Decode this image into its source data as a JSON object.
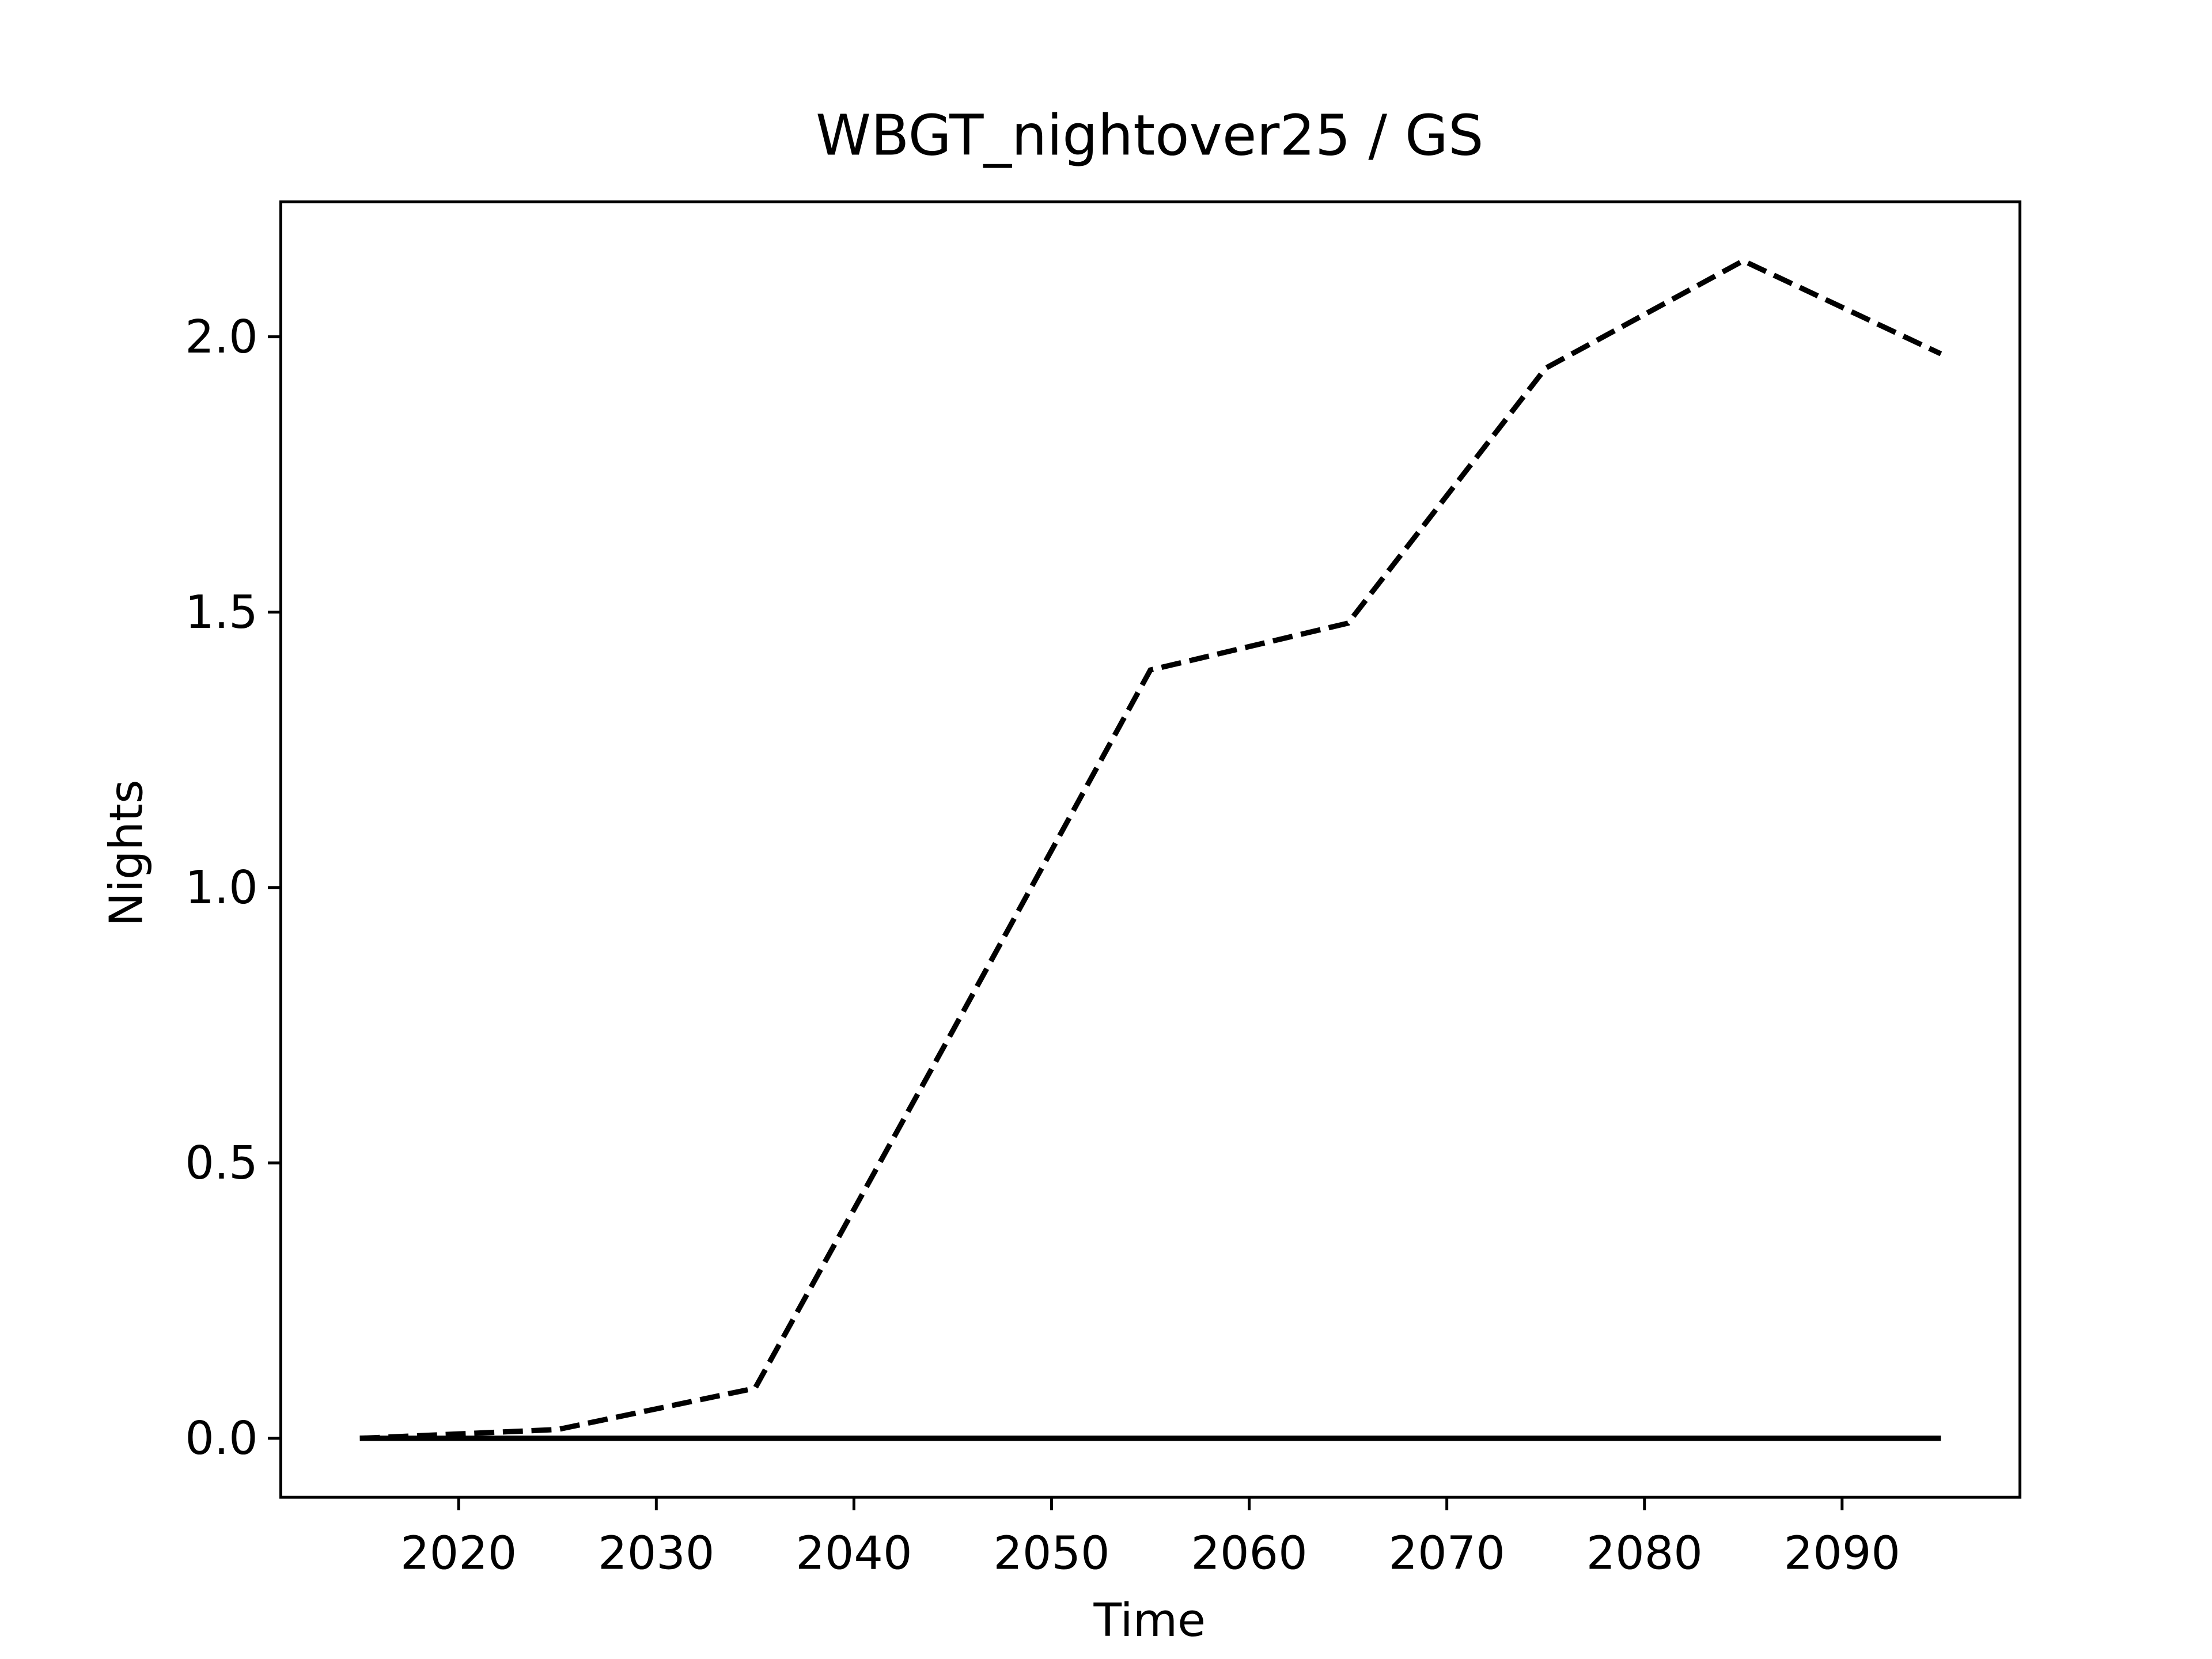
{
  "chart_data": {
    "type": "line",
    "title": "WBGT_nightover25 / GS",
    "xlabel": "Time",
    "ylabel": "Nights",
    "x": [
      2015,
      2025,
      2035,
      2045,
      2055,
      2065,
      2075,
      2085,
      2095
    ],
    "series": [
      {
        "color": "#000000",
        "linestyle": "dashed",
        "values": [
          0.0,
          0.016,
          0.091,
          0.74,
          1.395,
          1.48,
          1.943,
          2.138,
          1.969
        ]
      },
      {
        "color": "#000000",
        "linestyle": "solid",
        "values": [
          0,
          0,
          0,
          0,
          0,
          0,
          0,
          0,
          0
        ]
      }
    ],
    "xlim": [
      2011,
      2099
    ],
    "xticks": [
      2020,
      2030,
      2040,
      2050,
      2060,
      2070,
      2080,
      2090
    ],
    "ylim": [
      -0.107,
      2.245
    ],
    "yticks": [
      {
        "value": 0,
        "label": "0.0"
      },
      0.5,
      {
        "value": 1,
        "label": "1.0"
      },
      1.5,
      {
        "value": 2,
        "label": "2.0"
      }
    ],
    "grid": false
  }
}
